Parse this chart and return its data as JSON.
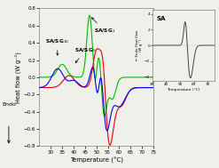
{
  "xlabel": "Temperature (°C)",
  "ylabel": "Heat flow (W g⁻¹)",
  "xlim": [
    25,
    75
  ],
  "ylim": [
    -0.8,
    0.8
  ],
  "bg_color": "#f0f0eb",
  "line_colors": {
    "SA_SG1": "#00bb00",
    "SA_SG5": "#ee0000",
    "SA_SG10": "#0000ee"
  },
  "inset_label": "SA"
}
